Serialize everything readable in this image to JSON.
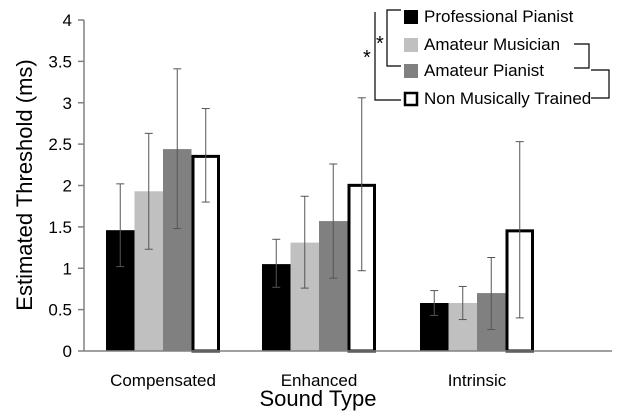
{
  "chart_data": {
    "type": "bar",
    "title": "",
    "xlabel": "Sound Type",
    "ylabel": "Estimated Threshold (ms)",
    "ylim": [
      0,
      4
    ],
    "yticks": [
      "0",
      "0.5",
      "1",
      "1.5",
      "2",
      "2.5",
      "3",
      "3.5",
      "4"
    ],
    "categories": [
      "Compensated",
      "Enhanced",
      "Intrinsic"
    ],
    "grid": false,
    "legend_position": "top-right",
    "significance_marker": "*",
    "series": [
      {
        "name": "Professional Pianist",
        "color": "#000000",
        "values": [
          1.46,
          1.05,
          0.58
        ],
        "err_low": [
          1.02,
          0.77,
          0.43
        ],
        "err_high": [
          2.02,
          1.35,
          0.73
        ]
      },
      {
        "name": "Amateur Musician",
        "color": "#c0c0c0",
        "values": [
          1.93,
          1.31,
          0.58
        ],
        "err_low": [
          1.23,
          0.76,
          0.38
        ],
        "err_high": [
          2.63,
          1.87,
          0.78
        ]
      },
      {
        "name": "Amateur Pianist",
        "color": "#808080",
        "values": [
          2.44,
          1.57,
          0.7
        ],
        "err_low": [
          1.48,
          0.88,
          0.26
        ],
        "err_high": [
          3.41,
          2.26,
          1.13
        ]
      },
      {
        "name": "Non Musically Trained",
        "color": "#ffffff",
        "outline": "#000000",
        "values": [
          2.37,
          2.02,
          1.47
        ],
        "err_low": [
          1.8,
          0.97,
          0.4
        ],
        "err_high": [
          2.93,
          3.06,
          2.53
        ]
      }
    ]
  }
}
